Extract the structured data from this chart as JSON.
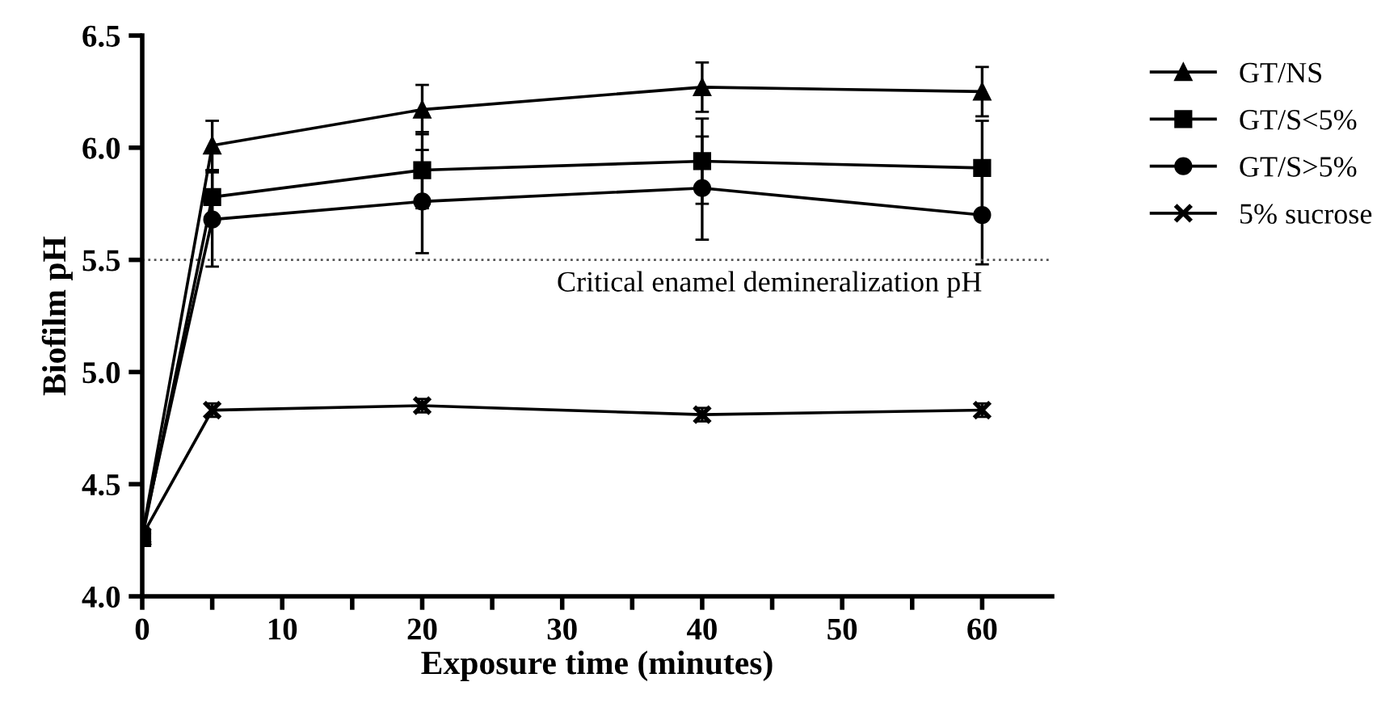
{
  "chart_data": {
    "type": "line",
    "xlabel": "Exposure time (minutes)",
    "ylabel": "Biofilm pH",
    "xlim": [
      0,
      65
    ],
    "ylim": [
      4.0,
      6.5
    ],
    "xticks": [
      0,
      {
        "value": 5,
        "label": null
      },
      10,
      {
        "value": 15,
        "label": null
      },
      20,
      {
        "value": 25,
        "label": null
      },
      30,
      {
        "value": 35,
        "label": null
      },
      40,
      {
        "value": 45,
        "label": null
      },
      50,
      {
        "value": 55,
        "label": null
      },
      60
    ],
    "yticks": [
      {
        "value": 4.0,
        "label": "4.0"
      },
      4.5,
      {
        "value": 5.0,
        "label": "5.0"
      },
      5.5,
      {
        "value": 6.0,
        "label": "6.0"
      },
      6.5
    ],
    "x": [
      0,
      5,
      20,
      40,
      60
    ],
    "series": [
      {
        "name": "GT/NS",
        "color": "#000000",
        "marker": "triangle",
        "values": [
          4.27,
          6.01,
          6.17,
          6.27,
          6.25
        ],
        "errors": [
          0.03,
          0.11,
          0.11,
          0.11,
          0.11
        ]
      },
      {
        "name": "GT/S<5%",
        "color": "#000000",
        "marker": "square",
        "values": [
          4.26,
          5.78,
          5.9,
          5.94,
          5.91
        ],
        "errors": [
          0.03,
          0.12,
          0.17,
          0.19,
          0.21
        ]
      },
      {
        "name": "GT/S>5%",
        "color": "#000000",
        "marker": "circle",
        "values": [
          4.28,
          5.68,
          5.76,
          5.82,
          5.7
        ],
        "errors": [
          0.03,
          0.21,
          0.23,
          0.23,
          0.22
        ]
      },
      {
        "name": "5% sucrose",
        "color": "#000000",
        "marker": "cross",
        "values": [
          4.27,
          4.83,
          4.85,
          4.81,
          4.83
        ],
        "errors": [
          0.03,
          0.03,
          0.03,
          0.03,
          0.03
        ]
      }
    ],
    "ref_lines": [
      {
        "axis": "y",
        "value": 5.5,
        "label": "Critical enamel demineralization pH",
        "color": "#555555",
        "line_style": "dotted"
      }
    ],
    "legend": "right",
    "grid": false,
    "line_style": "solid"
  }
}
